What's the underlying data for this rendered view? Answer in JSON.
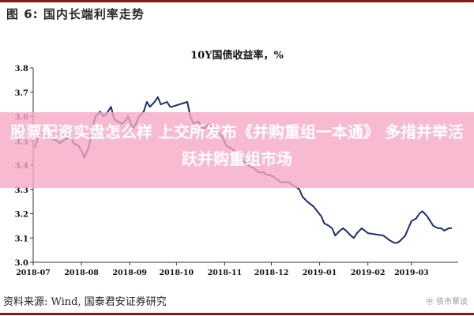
{
  "figure": {
    "title": "图 6:  国内长端利率走势",
    "source": "资料来源:  Wind,  国泰君安证券研究",
    "logo_text": "㊥ 债市覃谈"
  },
  "overlay": {
    "text": "股票配资实盘怎么样 上交所发布《并购重组一本通》 多措并举活跃并购重组市场",
    "color": "#f6a6c4"
  },
  "chart_data": {
    "type": "line",
    "title": "10Y国债收益率，%",
    "xlabel": "",
    "ylabel": "",
    "x_ticks": [
      "2018-07",
      "2018-08",
      "2018-09",
      "2018-10",
      "2018-11",
      "2018-12",
      "2019-01",
      "2019-02",
      "2019-03"
    ],
    "y_ticks": [
      "3.0",
      "3.1",
      "3.2",
      "3.3",
      "3.4",
      "3.5",
      "3.6",
      "3.7",
      "3.8"
    ],
    "ylim": [
      3.0,
      3.8
    ],
    "grid": false,
    "line_color": "#1c2e6e",
    "series": [
      {
        "points": [
          [
            "2018-07-02",
            3.47
          ],
          [
            "2018-07-04",
            3.51
          ],
          [
            "2018-07-06",
            3.53
          ],
          [
            "2018-07-09",
            3.52
          ],
          [
            "2018-07-11",
            3.52
          ],
          [
            "2018-07-13",
            3.51
          ],
          [
            "2018-07-16",
            3.5
          ],
          [
            "2018-07-18",
            3.49
          ],
          [
            "2018-07-20",
            3.5
          ],
          [
            "2018-07-23",
            3.51
          ],
          [
            "2018-07-25",
            3.52
          ],
          [
            "2018-07-27",
            3.49
          ],
          [
            "2018-07-30",
            3.48
          ],
          [
            "2018-08-01",
            3.46
          ],
          [
            "2018-08-03",
            3.43
          ],
          [
            "2018-08-06",
            3.48
          ],
          [
            "2018-08-08",
            3.55
          ],
          [
            "2018-08-10",
            3.6
          ],
          [
            "2018-08-13",
            3.62
          ],
          [
            "2018-08-15",
            3.6
          ],
          [
            "2018-08-17",
            3.61
          ],
          [
            "2018-08-20",
            3.64
          ],
          [
            "2018-08-22",
            3.59
          ],
          [
            "2018-08-24",
            3.58
          ],
          [
            "2018-08-27",
            3.57
          ],
          [
            "2018-08-29",
            3.58
          ],
          [
            "2018-08-31",
            3.6
          ],
          [
            "2018-09-03",
            3.55
          ],
          [
            "2018-09-05",
            3.57
          ],
          [
            "2018-09-07",
            3.6
          ],
          [
            "2018-09-10",
            3.62
          ],
          [
            "2018-09-12",
            3.66
          ],
          [
            "2018-09-14",
            3.64
          ],
          [
            "2018-09-17",
            3.66
          ],
          [
            "2018-09-19",
            3.68
          ],
          [
            "2018-09-21",
            3.65
          ],
          [
            "2018-09-25",
            3.66
          ],
          [
            "2018-09-27",
            3.64
          ],
          [
            "2018-09-28",
            3.64
          ],
          [
            "2018-10-08",
            3.66
          ],
          [
            "2018-10-10",
            3.6
          ],
          [
            "2018-10-12",
            3.57
          ],
          [
            "2018-10-15",
            3.58
          ],
          [
            "2018-10-17",
            3.56
          ],
          [
            "2018-10-19",
            3.55
          ],
          [
            "2018-10-22",
            3.57
          ],
          [
            "2018-10-24",
            3.55
          ],
          [
            "2018-10-26",
            3.54
          ],
          [
            "2018-10-29",
            3.53
          ],
          [
            "2018-10-31",
            3.51
          ],
          [
            "2018-11-02",
            3.48
          ],
          [
            "2018-11-05",
            3.47
          ],
          [
            "2018-11-07",
            3.46
          ],
          [
            "2018-11-09",
            3.44
          ],
          [
            "2018-11-12",
            3.43
          ],
          [
            "2018-11-14",
            3.41
          ],
          [
            "2018-11-16",
            3.4
          ],
          [
            "2018-11-19",
            3.39
          ],
          [
            "2018-11-21",
            3.38
          ],
          [
            "2018-11-23",
            3.37
          ],
          [
            "2018-11-26",
            3.37
          ],
          [
            "2018-11-28",
            3.36
          ],
          [
            "2018-11-30",
            3.36
          ],
          [
            "2018-12-03",
            3.35
          ],
          [
            "2018-12-05",
            3.34
          ],
          [
            "2018-12-07",
            3.33
          ],
          [
            "2018-12-10",
            3.33
          ],
          [
            "2018-12-12",
            3.33
          ],
          [
            "2018-12-14",
            3.32
          ],
          [
            "2018-12-17",
            3.31
          ],
          [
            "2018-12-19",
            3.3
          ],
          [
            "2018-12-21",
            3.27
          ],
          [
            "2018-12-24",
            3.25
          ],
          [
            "2018-12-26",
            3.24
          ],
          [
            "2018-12-28",
            3.23
          ],
          [
            "2019-01-02",
            3.19
          ],
          [
            "2019-01-04",
            3.16
          ],
          [
            "2019-01-07",
            3.15
          ],
          [
            "2019-01-09",
            3.14
          ],
          [
            "2019-01-11",
            3.11
          ],
          [
            "2019-01-14",
            3.13
          ],
          [
            "2019-01-16",
            3.14
          ],
          [
            "2019-01-18",
            3.13
          ],
          [
            "2019-01-21",
            3.11
          ],
          [
            "2019-01-23",
            3.1
          ],
          [
            "2019-01-25",
            3.12
          ],
          [
            "2019-01-28",
            3.14
          ],
          [
            "2019-01-30",
            3.13
          ],
          [
            "2019-02-01",
            3.12
          ],
          [
            "2019-02-11",
            3.11
          ],
          [
            "2019-02-13",
            3.1
          ],
          [
            "2019-02-15",
            3.09
          ],
          [
            "2019-02-18",
            3.08
          ],
          [
            "2019-02-20",
            3.08
          ],
          [
            "2019-02-22",
            3.09
          ],
          [
            "2019-02-25",
            3.11
          ],
          [
            "2019-02-27",
            3.14
          ],
          [
            "2019-03-01",
            3.17
          ],
          [
            "2019-03-04",
            3.18
          ],
          [
            "2019-03-06",
            3.2
          ],
          [
            "2019-03-08",
            3.21
          ],
          [
            "2019-03-11",
            3.19
          ],
          [
            "2019-03-13",
            3.17
          ],
          [
            "2019-03-15",
            3.15
          ],
          [
            "2019-03-18",
            3.14
          ],
          [
            "2019-03-20",
            3.14
          ],
          [
            "2019-03-22",
            3.13
          ],
          [
            "2019-03-25",
            3.14
          ],
          [
            "2019-03-27",
            3.14
          ]
        ]
      }
    ]
  }
}
